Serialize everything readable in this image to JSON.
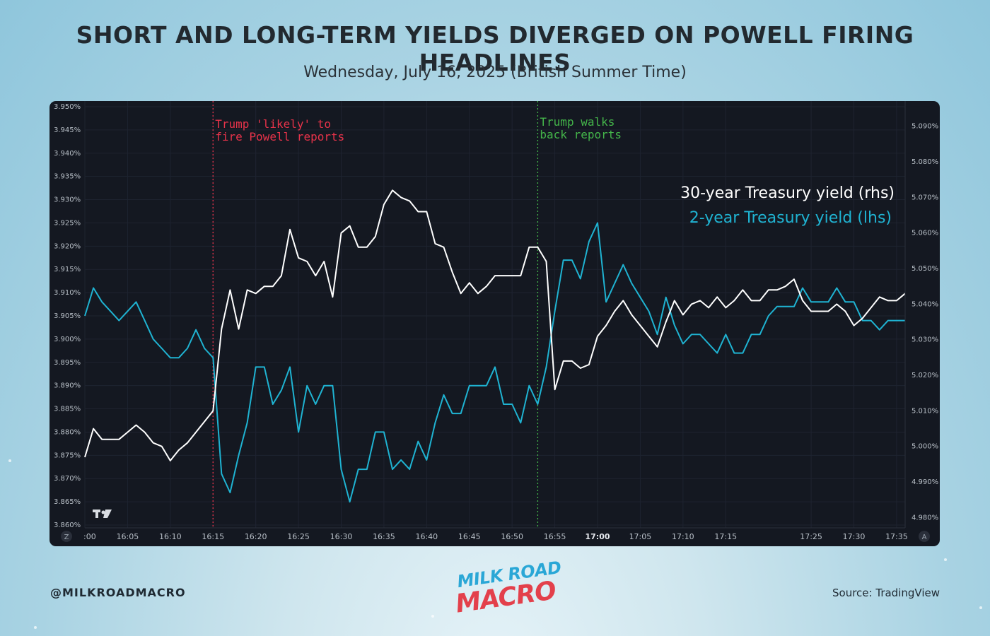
{
  "header": {
    "title": "SHORT AND LONG-TERM YIELDS DIVERGED ON POWELL FIRING HEADLINES",
    "subtitle": "Wednesday, July 16, 2025 (British Summer Time)"
  },
  "footer": {
    "handle": "@MILKROADMACRO",
    "source": "Source: TradingView",
    "logo_line1": "MILK ROAD",
    "logo_line2": "MACRO"
  },
  "chart_data": {
    "type": "line",
    "title": "",
    "xlabel": "",
    "x_ticks": [
      ":00",
      "16:05",
      "16:10",
      "16:15",
      "16:20",
      "16:25",
      "16:30",
      "16:35",
      "16:40",
      "16:45",
      "16:50",
      "16:55",
      "17:00",
      "17:05",
      "17:10",
      "17:15",
      "17:25",
      "17:30",
      "17:35"
    ],
    "x_tick_bold": "17:00",
    "left_axis": {
      "label": "",
      "range": [
        3.86,
        3.95
      ],
      "ticks": [
        "3.860%",
        "3.865%",
        "3.870%",
        "3.875%",
        "3.880%",
        "3.885%",
        "3.890%",
        "3.895%",
        "3.900%",
        "3.905%",
        "3.910%",
        "3.915%",
        "3.920%",
        "3.925%",
        "3.930%",
        "3.935%",
        "3.940%",
        "3.945%",
        "3.950%"
      ]
    },
    "right_axis": {
      "label": "",
      "range": [
        4.9779,
        5.0955
      ],
      "ticks": [
        "4.980%",
        "4.990%",
        "5.000%",
        "5.010%",
        "5.020%",
        "5.030%",
        "5.040%",
        "5.050%",
        "5.060%",
        "5.070%",
        "5.080%",
        "5.090%"
      ]
    },
    "legend": [
      {
        "label": "30-year Treasury yield (rhs)",
        "color": "#ffffff"
      },
      {
        "label": "2-year Treasury yield (lhs)",
        "color": "#1fb3d2"
      }
    ],
    "legend_position": "top-right",
    "corner_labels": {
      "left": "Z",
      "right": "A"
    },
    "annotations": [
      {
        "x": "16:15",
        "label_line1": "Trump 'likely' to",
        "label_line2": "fire Powell reports",
        "color": "#e8334a"
      },
      {
        "x": "16:53",
        "label_line1": "Trump walks",
        "label_line2": "back reports",
        "color": "#44b54a"
      }
    ],
    "x_time_start": "16:00",
    "x_time_end": "17:36",
    "series": [
      {
        "name": "2-year Treasury yield (lhs)",
        "axis": "left",
        "color": "#1fb3d2",
        "x": [
          "16:00",
          "16:01",
          "16:02",
          "16:03",
          "16:04",
          "16:05",
          "16:06",
          "16:07",
          "16:08",
          "16:09",
          "16:10",
          "16:11",
          "16:12",
          "16:13",
          "16:14",
          "16:15",
          "16:16",
          "16:17",
          "16:18",
          "16:19",
          "16:20",
          "16:21",
          "16:22",
          "16:23",
          "16:24",
          "16:25",
          "16:26",
          "16:27",
          "16:28",
          "16:29",
          "16:30",
          "16:31",
          "16:32",
          "16:33",
          "16:34",
          "16:35",
          "16:36",
          "16:37",
          "16:38",
          "16:39",
          "16:40",
          "16:41",
          "16:42",
          "16:43",
          "16:44",
          "16:45",
          "16:46",
          "16:47",
          "16:48",
          "16:49",
          "16:50",
          "16:51",
          "16:52",
          "16:53",
          "16:54",
          "16:55",
          "16:56",
          "16:57",
          "16:58",
          "16:59",
          "17:00",
          "17:01",
          "17:02",
          "17:03",
          "17:04",
          "17:05",
          "17:06",
          "17:07",
          "17:08",
          "17:09",
          "17:10",
          "17:11",
          "17:12",
          "17:13",
          "17:14",
          "17:15",
          "17:16",
          "17:17",
          "17:18",
          "17:19",
          "17:20",
          "17:21",
          "17:22",
          "17:23",
          "17:24",
          "17:25",
          "17:26",
          "17:27",
          "17:28",
          "17:29",
          "17:30",
          "17:31",
          "17:32",
          "17:33",
          "17:34",
          "17:35",
          "17:36"
        ],
        "values": [
          3.905,
          3.911,
          3.908,
          3.906,
          3.904,
          3.906,
          3.908,
          3.904,
          3.9,
          3.898,
          3.896,
          3.896,
          3.898,
          3.902,
          3.898,
          3.896,
          3.871,
          3.867,
          3.875,
          3.882,
          3.894,
          3.894,
          3.886,
          3.889,
          3.894,
          3.88,
          3.89,
          3.886,
          3.89,
          3.89,
          3.872,
          3.865,
          3.872,
          3.872,
          3.88,
          3.88,
          3.872,
          3.874,
          3.872,
          3.878,
          3.874,
          3.882,
          3.888,
          3.884,
          3.884,
          3.89,
          3.89,
          3.89,
          3.894,
          3.886,
          3.886,
          3.882,
          3.89,
          3.886,
          3.894,
          3.906,
          3.917,
          3.917,
          3.913,
          3.921,
          3.925,
          3.908,
          3.912,
          3.916,
          3.912,
          3.909,
          3.906,
          3.901,
          3.909,
          3.903,
          3.899,
          3.901,
          3.901,
          3.899,
          3.897,
          3.901,
          3.897,
          3.897,
          3.901,
          3.901,
          3.905,
          3.907,
          3.907,
          3.907,
          3.911,
          3.908,
          3.908,
          3.908,
          3.911,
          3.908,
          3.908,
          3.904,
          3.904,
          3.902,
          3.904,
          3.904,
          3.904
        ]
      },
      {
        "name": "30-year Treasury yield (rhs)",
        "axis": "right",
        "color": "#ffffff",
        "x": [
          "16:00",
          "16:01",
          "16:02",
          "16:03",
          "16:04",
          "16:05",
          "16:06",
          "16:07",
          "16:08",
          "16:09",
          "16:10",
          "16:11",
          "16:12",
          "16:13",
          "16:14",
          "16:15",
          "16:16",
          "16:17",
          "16:18",
          "16:19",
          "16:20",
          "16:21",
          "16:22",
          "16:23",
          "16:24",
          "16:25",
          "16:26",
          "16:27",
          "16:28",
          "16:29",
          "16:30",
          "16:31",
          "16:32",
          "16:33",
          "16:34",
          "16:35",
          "16:36",
          "16:37",
          "16:38",
          "16:39",
          "16:40",
          "16:41",
          "16:42",
          "16:43",
          "16:44",
          "16:45",
          "16:46",
          "16:47",
          "16:48",
          "16:49",
          "16:50",
          "16:51",
          "16:52",
          "16:53",
          "16:54",
          "16:55",
          "16:56",
          "16:57",
          "16:58",
          "16:59",
          "17:00",
          "17:01",
          "17:02",
          "17:03",
          "17:04",
          "17:05",
          "17:06",
          "17:07",
          "17:08",
          "17:09",
          "17:10",
          "17:11",
          "17:12",
          "17:13",
          "17:14",
          "17:15",
          "17:16",
          "17:17",
          "17:18",
          "17:19",
          "17:20",
          "17:21",
          "17:22",
          "17:23",
          "17:24",
          "17:25",
          "17:26",
          "17:27",
          "17:28",
          "17:29",
          "17:30",
          "17:31",
          "17:32",
          "17:33",
          "17:34",
          "17:35",
          "17:36"
        ],
        "values": [
          4.997,
          5.005,
          5.002,
          5.002,
          5.002,
          5.004,
          5.006,
          5.004,
          5.001,
          5.0,
          4.996,
          4.999,
          5.001,
          5.004,
          5.007,
          5.01,
          5.033,
          5.044,
          5.033,
          5.044,
          5.043,
          5.045,
          5.045,
          5.048,
          5.061,
          5.053,
          5.052,
          5.048,
          5.052,
          5.042,
          5.06,
          5.062,
          5.056,
          5.056,
          5.059,
          5.068,
          5.072,
          5.07,
          5.069,
          5.066,
          5.066,
          5.057,
          5.056,
          5.049,
          5.043,
          5.046,
          5.043,
          5.045,
          5.048,
          5.048,
          5.048,
          5.048,
          5.056,
          5.056,
          5.052,
          5.016,
          5.024,
          5.024,
          5.022,
          5.023,
          5.031,
          5.034,
          5.038,
          5.041,
          5.037,
          5.034,
          5.031,
          5.028,
          5.035,
          5.041,
          5.037,
          5.04,
          5.041,
          5.039,
          5.042,
          5.039,
          5.041,
          5.044,
          5.041,
          5.041,
          5.044,
          5.044,
          5.045,
          5.047,
          5.041,
          5.038,
          5.038,
          5.038,
          5.04,
          5.038,
          5.034,
          5.036,
          5.039,
          5.042,
          5.041,
          5.041,
          5.043
        ]
      }
    ]
  }
}
